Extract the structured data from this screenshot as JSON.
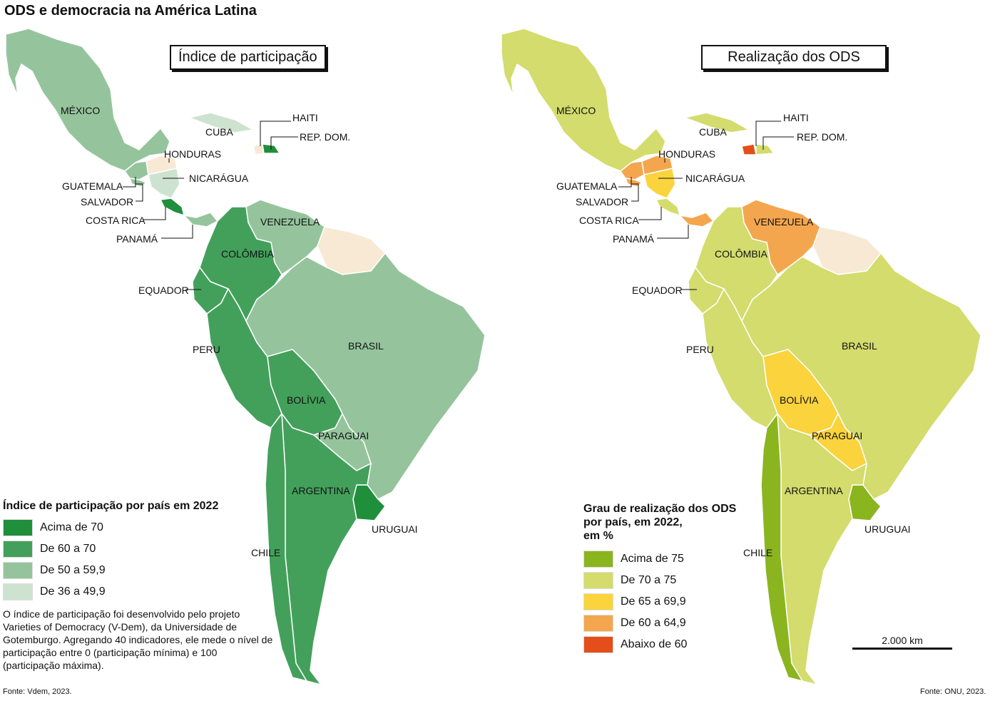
{
  "title": "ODS e democracia na América Latina",
  "colors": {
    "left_above70": "#1f8f3c",
    "left_60_70": "#43a05b",
    "left_50_60": "#95c49c",
    "left_36_50": "#cde3d0",
    "right_above75": "#8ab51e",
    "right_70_75": "#d3dc6c",
    "right_65_70": "#fbd33d",
    "right_60_65": "#f4a64e",
    "right_below60": "#e34e1a",
    "no_data": "#f7e9d4",
    "border": "#ffffff"
  },
  "left_map": {
    "title": "Índice de participação",
    "labels": {
      "mexico": "MÉXICO",
      "cuba": "CUBA",
      "haiti": "HAITI",
      "rep_dom": "REP. DOM.",
      "honduras": "HONDURAS",
      "guatemala": "GUATEMALA",
      "nicaragua": "NICARÁGUA",
      "salvador": "SALVADOR",
      "costa_rica": "COSTA RICA",
      "panama": "PANAMÁ",
      "venezuela": "VENEZUELA",
      "colombia": "COLÔMBIA",
      "equador": "EQUADOR",
      "peru": "PERU",
      "brasil": "BRASIL",
      "bolivia": "BOLÍVIA",
      "paraguai": "PARAGUAI",
      "argentina": "ARGENTINA",
      "uruguai": "URUGUAI",
      "chile": "CHILE"
    },
    "legend": {
      "title": "Índice de participação por país em 2022",
      "items": [
        {
          "label": "Acima de 70",
          "color": "#1f8f3c"
        },
        {
          "label": "De 60 a 70",
          "color": "#43a05b"
        },
        {
          "label": "De 50 a 59,9",
          "color": "#95c49c"
        },
        {
          "label": "De 36 a 49,9",
          "color": "#cde3d0"
        }
      ]
    },
    "note": "O índice de participação foi desenvolvido pelo projeto Varieties of Democracy (V-Dem), da Universidade de Gotemburgo. Agregando 40 indicadores, ele mede o nível de participação entre 0 (participação mínima) e 100 (participação máxima).",
    "source": "Fonte: Vdem, 2023."
  },
  "right_map": {
    "title": "Realização dos ODS",
    "labels": {
      "mexico": "MÉXICO",
      "cuba": "CUBA",
      "haiti": "HAITI",
      "rep_dom": "REP. DOM.",
      "honduras": "HONDURAS",
      "guatemala": "GUATEMALA",
      "nicaragua": "NICARÁGUA",
      "salvador": "SALVADOR",
      "costa_rica": "COSTA RICA",
      "panama": "PANAMÁ",
      "venezuela": "VENEZUELA",
      "colombia": "COLÔMBIA",
      "equador": "EQUADOR",
      "peru": "PERU",
      "brasil": "BRASIL",
      "bolivia": "BOLÍVIA",
      "paraguai": "PARAGUAI",
      "argentina": "ARGENTINA",
      "uruguai": "URUGUAI",
      "chile": "CHILE"
    },
    "legend": {
      "title_line1": "Grau de realização dos ODS",
      "title_line2": "por país, em 2022,",
      "title_line3": "em %",
      "items": [
        {
          "label": "Acima de 75",
          "color": "#8ab51e"
        },
        {
          "label": "De 70 a 75",
          "color": "#d3dc6c"
        },
        {
          "label": "De 65 a 69,9",
          "color": "#fbd33d"
        },
        {
          "label": "De 60 a 64,9",
          "color": "#f4a64e"
        },
        {
          "label": "Abaixo de 60",
          "color": "#e34e1a"
        }
      ]
    },
    "scale": "2.000 km",
    "source": "Fonte: ONU, 2023."
  }
}
